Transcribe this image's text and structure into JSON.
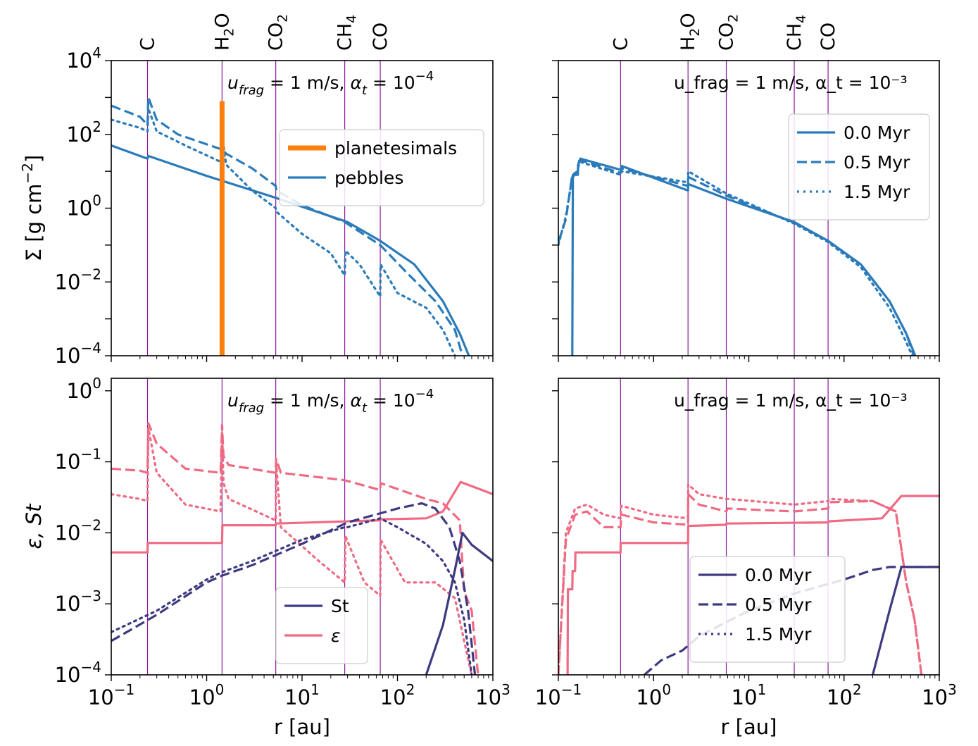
{
  "colors": {
    "pebbles": "#2b7bba",
    "planetesimals": "#ff7f0e",
    "st": "#3d3a80",
    "eps": "#ef6a83",
    "iceline": "#8b1a9a"
  },
  "chart_data": [
    {
      "type": "line",
      "panel": "top-left",
      "xscale": "log",
      "yscale": "log",
      "xlim": [
        0.1,
        1000
      ],
      "ylim": [
        0.0001,
        10000
      ],
      "xlabel": "",
      "ylabel": "Σ [g cm⁻²]",
      "xticks": [
        "",
        "",
        "",
        "",
        ""
      ],
      "yticks": [
        "10⁻⁴",
        "10⁻²",
        "10⁰",
        "10²",
        "10⁴"
      ],
      "annotation": "u_frag = 1 m/s, α_t = 10⁻⁴",
      "ice_lines": [
        {
          "label": "C",
          "r": 0.24
        },
        {
          "label": "H₂O",
          "r": 1.45
        },
        {
          "label": "CO₂",
          "r": 5.3
        },
        {
          "label": "CH₄",
          "r": 28
        },
        {
          "label": "CO",
          "r": 66
        }
      ],
      "legend": {
        "position": "upper-right",
        "entries": [
          "planetesimals",
          "pebbles"
        ]
      },
      "series": [
        {
          "style": "solid",
          "color": "pebbles",
          "x": [
            0.1,
            0.24,
            0.245,
            1,
            5,
            30,
            66,
            150,
            300,
            450,
            560
          ],
          "y": [
            50,
            22,
            26,
            7.5,
            2,
            0.42,
            0.13,
            0.03,
            0.003,
            0.0004,
            0.0001
          ]
        },
        {
          "style": "dashed",
          "color": "pebbles",
          "x": [
            0.1,
            0.2,
            0.24,
            0.245,
            0.3,
            0.5,
            1.4,
            1.45,
            1.6,
            3,
            5.3,
            5.4,
            10,
            28,
            66,
            120,
            250,
            400,
            480
          ],
          "y": [
            600,
            300,
            180,
            1000,
            250,
            100,
            40,
            40,
            30,
            12,
            4,
            3,
            1.2,
            0.42,
            0.1,
            0.02,
            0.003,
            0.0005,
            0.0001
          ]
        },
        {
          "style": "dotted",
          "color": "pebbles",
          "x": [
            0.1,
            0.2,
            0.24,
            0.245,
            0.3,
            0.6,
            1.4,
            1.45,
            1.6,
            3,
            5.3,
            5.4,
            10,
            20,
            28,
            28.5,
            40,
            66,
            66.5,
            100,
            200,
            300,
            400
          ],
          "y": [
            250,
            150,
            120,
            500,
            120,
            50,
            18,
            100,
            15,
            3,
            1,
            0.8,
            0.2,
            0.06,
            0.015,
            0.07,
            0.03,
            0.004,
            0.03,
            0.005,
            0.002,
            0.0005,
            0.0001
          ]
        },
        {
          "style": "solid",
          "color": "planetesimals",
          "x": [
            1.45,
            1.45
          ],
          "y": [
            0.0001,
            800
          ]
        }
      ]
    },
    {
      "type": "line",
      "panel": "top-right",
      "xscale": "log",
      "yscale": "log",
      "xlim": [
        0.1,
        1000
      ],
      "ylim": [
        0.0001,
        10000
      ],
      "xlabel": "",
      "ylabel": "",
      "xticks": [
        "",
        "",
        "",
        "",
        ""
      ],
      "yticks": [
        "",
        "",
        "",
        "",
        ""
      ],
      "annotation": "u_frag = 1 m/s, α_t = 10⁻³",
      "ice_lines": [
        {
          "label": "C",
          "r": 0.45
        },
        {
          "label": "H₂O",
          "r": 2.3
        },
        {
          "label": "CO₂",
          "r": 5.8
        },
        {
          "label": "CH₄",
          "r": 30
        },
        {
          "label": "CO",
          "r": 68
        }
      ],
      "legend": {
        "position": "upper-right",
        "entries": [
          "0.0 Myr",
          "0.5 Myr",
          "1.5 Myr"
        ]
      },
      "series": [
        {
          "style": "solid",
          "color": "pebbles",
          "name": "0.0 Myr",
          "x": [
            0.14,
            0.142,
            0.15,
            0.16,
            0.161,
            0.17,
            0.45,
            0.46,
            2.3,
            2.31,
            5.8,
            30,
            68,
            150,
            300,
            450,
            560
          ],
          "y": [
            0.0001,
            8,
            8,
            8,
            15,
            22,
            11,
            14,
            3,
            4.5,
            1.8,
            0.42,
            0.13,
            0.03,
            0.003,
            0.0004,
            0.0001
          ]
        },
        {
          "style": "dashed",
          "color": "pebbles",
          "name": "0.5 Myr",
          "x": [
            0.1,
            0.12,
            0.14,
            0.15,
            0.16,
            0.165,
            0.17,
            0.45,
            0.46,
            2.3,
            2.31,
            5.8,
            30,
            68,
            150,
            300,
            450,
            540
          ],
          "y": [
            0.12,
            0.5,
            8,
            9,
            10,
            19,
            20,
            9,
            12,
            4,
            7,
            2.2,
            0.4,
            0.13,
            0.03,
            0.003,
            0.0004,
            0.0001
          ]
        },
        {
          "style": "dotted",
          "color": "pebbles",
          "name": "1.5 Myr",
          "x": [
            0.1,
            0.12,
            0.14,
            0.15,
            0.16,
            0.165,
            0.17,
            0.45,
            0.46,
            2.3,
            2.31,
            5.8,
            30,
            68,
            150,
            300,
            430,
            520
          ],
          "y": [
            0.1,
            0.6,
            7,
            8,
            9,
            17,
            18,
            8,
            10,
            5,
            10,
            2.5,
            0.38,
            0.12,
            0.025,
            0.002,
            0.0003,
            0.0001
          ]
        }
      ]
    },
    {
      "type": "line",
      "panel": "bottom-left",
      "xscale": "log",
      "yscale": "log",
      "xlim": [
        0.1,
        1000
      ],
      "ylim": [
        0.0001,
        1.5
      ],
      "xlabel": "r [au]",
      "ylabel": "ε, St",
      "xticks": [
        "10⁻¹",
        "10⁰",
        "10¹",
        "10²",
        "10³"
      ],
      "yticks": [
        "10⁻⁴",
        "10⁻³",
        "10⁻²",
        "10⁻¹",
        "10⁰"
      ],
      "annotation": "u_frag = 1 m/s, α_t = 10⁻⁴",
      "ice_lines": [
        {
          "label": "",
          "r": 0.24
        },
        {
          "label": "",
          "r": 1.45
        },
        {
          "label": "",
          "r": 5.3
        },
        {
          "label": "",
          "r": 28
        },
        {
          "label": "",
          "r": 66
        }
      ],
      "legend": {
        "position": "lower-center",
        "entries": [
          "St",
          "ε"
        ]
      },
      "series": [
        {
          "style": "solid",
          "color": "eps",
          "x": [
            0.1,
            0.24,
            0.241,
            1.45,
            1.46,
            5.3,
            5.31,
            66,
            66.5,
            200,
            300,
            460,
            1000
          ],
          "y": [
            0.0053,
            0.0053,
            0.0072,
            0.0072,
            0.0128,
            0.0128,
            0.0135,
            0.015,
            0.0155,
            0.016,
            0.02,
            0.052,
            0.035
          ]
        },
        {
          "style": "dashed",
          "color": "eps",
          "x": [
            0.1,
            0.2,
            0.24,
            0.245,
            0.3,
            0.6,
            1.4,
            1.45,
            1.5,
            1.7,
            5.3,
            5.35,
            6,
            28,
            66,
            66.5,
            200,
            300,
            450,
            500,
            600,
            700
          ],
          "y": [
            0.08,
            0.075,
            0.07,
            0.35,
            0.18,
            0.08,
            0.07,
            0.33,
            0.12,
            0.09,
            0.07,
            0.11,
            0.07,
            0.055,
            0.04,
            0.05,
            0.03,
            0.026,
            0.015,
            0.0015,
            0.0008,
            0.0001
          ]
        },
        {
          "style": "dotted",
          "color": "eps",
          "x": [
            0.1,
            0.2,
            0.24,
            0.245,
            0.3,
            0.6,
            1.4,
            1.45,
            1.5,
            1.7,
            5.3,
            5.35,
            6,
            15,
            28,
            28.5,
            45,
            66,
            66.5,
            120,
            250,
            400,
            500,
            600
          ],
          "y": [
            0.035,
            0.03,
            0.028,
            0.3,
            0.07,
            0.025,
            0.02,
            0.3,
            0.05,
            0.03,
            0.015,
            0.1,
            0.012,
            0.004,
            0.002,
            0.009,
            0.002,
            0.0013,
            0.008,
            0.002,
            0.002,
            0.0012,
            0.0003,
            0.0001
          ]
        },
        {
          "style": "solid",
          "color": "st",
          "x": [
            200,
            300,
            400,
            480,
            600,
            1000
          ],
          "y": [
            0.0001,
            0.0005,
            0.003,
            0.01,
            0.0068,
            0.004
          ]
        },
        {
          "style": "dashed",
          "color": "st",
          "x": [
            0.1,
            0.3,
            1,
            1.45,
            3,
            10,
            30,
            100,
            180,
            250,
            350,
            450,
            550,
            650
          ],
          "y": [
            0.0003,
            0.0007,
            0.002,
            0.0025,
            0.0035,
            0.007,
            0.014,
            0.022,
            0.026,
            0.022,
            0.012,
            0.004,
            0.0008,
            0.0001
          ]
        },
        {
          "style": "dotted",
          "color": "st",
          "x": [
            0.1,
            0.3,
            1,
            1.45,
            3,
            10,
            28,
            30,
            66,
            100,
            200,
            300,
            400,
            500,
            600
          ],
          "y": [
            0.0004,
            0.0008,
            0.0022,
            0.0028,
            0.004,
            0.008,
            0.012,
            0.012,
            0.016,
            0.012,
            0.007,
            0.004,
            0.002,
            0.0006,
            0.0001
          ]
        }
      ]
    },
    {
      "type": "line",
      "panel": "bottom-right",
      "xscale": "log",
      "yscale": "log",
      "xlim": [
        0.1,
        1000
      ],
      "ylim": [
        0.0001,
        1.5
      ],
      "xlabel": "r [au]",
      "ylabel": "",
      "xticks": [
        "10⁻¹",
        "10⁰",
        "10¹",
        "10²",
        "10³"
      ],
      "yticks": [
        "",
        "",
        "",
        "",
        ""
      ],
      "annotation": "u_frag = 1 m/s, α_t = 10⁻³",
      "ice_lines": [
        {
          "label": "",
          "r": 0.45
        },
        {
          "label": "",
          "r": 2.3
        },
        {
          "label": "",
          "r": 5.8
        },
        {
          "label": "",
          "r": 30
        },
        {
          "label": "",
          "r": 68
        }
      ],
      "legend": {
        "position": "lower-right",
        "entries": [
          "0.0 Myr",
          "0.5 Myr",
          "1.5 Myr"
        ]
      },
      "series": [
        {
          "style": "solid",
          "color": "eps",
          "x": [
            0.125,
            0.126,
            0.14,
            0.141,
            0.15,
            0.151,
            0.45,
            0.451,
            2.3,
            2.31,
            5.8,
            5.81,
            68,
            68.5,
            250,
            400,
            1000
          ],
          "y": [
            0.0001,
            0.0016,
            0.0016,
            0.0029,
            0.0029,
            0.0053,
            0.0053,
            0.0072,
            0.0072,
            0.0125,
            0.013,
            0.0135,
            0.014,
            0.0145,
            0.016,
            0.033,
            0.033
          ]
        },
        {
          "style": "dashed",
          "color": "eps",
          "x": [
            0.1,
            0.12,
            0.15,
            0.2,
            0.3,
            0.45,
            0.46,
            1,
            2.3,
            2.31,
            3,
            5.8,
            6,
            30,
            68,
            70,
            200,
            350,
            450,
            550,
            650
          ],
          "y": [
            0.0001,
            0.008,
            0.018,
            0.02,
            0.012,
            0.012,
            0.018,
            0.014,
            0.013,
            0.035,
            0.025,
            0.02,
            0.022,
            0.02,
            0.022,
            0.027,
            0.028,
            0.02,
            0.002,
            0.0006,
            0.0001
          ]
        },
        {
          "style": "dotted",
          "color": "eps",
          "x": [
            0.1,
            0.12,
            0.15,
            0.2,
            0.3,
            0.45,
            0.46,
            1,
            2.3,
            2.31,
            3,
            5.8,
            6,
            30,
            68,
            70,
            200,
            350,
            450,
            550,
            650
          ],
          "y": [
            0.0001,
            0.01,
            0.022,
            0.025,
            0.018,
            0.016,
            0.024,
            0.018,
            0.016,
            0.048,
            0.035,
            0.03,
            0.03,
            0.025,
            0.028,
            0.03,
            0.028,
            0.02,
            0.002,
            0.0006,
            0.0001
          ]
        },
        {
          "style": "solid",
          "color": "st",
          "x": [
            200,
            300,
            400,
            1000
          ],
          "y": [
            0.0001,
            0.0008,
            0.0033,
            0.0033
          ]
        },
        {
          "style": "dashed",
          "color": "st",
          "x": [
            0.8,
            1.2,
            2,
            3,
            5,
            10,
            30,
            100,
            200,
            300,
            1000
          ],
          "y": [
            0.0001,
            0.00016,
            0.00022,
            0.00035,
            0.0005,
            0.0008,
            0.0014,
            0.0022,
            0.003,
            0.0033,
            0.0033
          ]
        }
      ]
    }
  ],
  "figure": {
    "xlabel_bottom": "r [au]"
  }
}
